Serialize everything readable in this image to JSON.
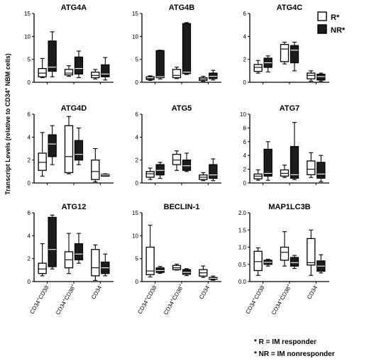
{
  "figure": {
    "ylabel_pre": "Transcript Levels (relative to CD34",
    "ylabel_sup": "+",
    "ylabel_post": " NBM cells)",
    "legend": [
      {
        "key": "R",
        "label": "R*",
        "color": "#ffffff"
      },
      {
        "key": "NR",
        "label": "NR*",
        "color": "#1c1c1c"
      }
    ],
    "footnotes": [
      "* R = IM responder",
      "* NR = IM nonresponder"
    ],
    "categories": [
      {
        "base": "CD34",
        "sups": [
          "+",
          "CD38",
          "-"
        ]
      },
      {
        "base": "CD34",
        "sups": [
          "+",
          "CD38",
          "+"
        ]
      },
      {
        "base": "CD34",
        "sups": [
          "-"
        ]
      }
    ]
  },
  "chart_data": [
    {
      "type": "box",
      "title": "ATG4A",
      "ylim": [
        0,
        15
      ],
      "yticks": [
        0,
        5,
        10,
        15
      ],
      "series": [
        {
          "name": "R*",
          "boxes": [
            [
              1.0,
              1.2,
              2.0,
              3.0,
              5.2
            ],
            [
              1.3,
              1.6,
              2.0,
              2.8,
              3.6
            ],
            [
              0.7,
              1.0,
              1.5,
              2.2,
              2.8
            ]
          ]
        },
        {
          "name": "NR*",
          "boxes": [
            [
              1.2,
              2.4,
              3.3,
              9.0,
              11.0
            ],
            [
              1.0,
              1.8,
              3.0,
              5.5,
              6.8
            ],
            [
              0.5,
              1.2,
              1.8,
              3.8,
              5.4
            ]
          ]
        }
      ]
    },
    {
      "type": "box",
      "title": "ATG4B",
      "ylim": [
        0,
        15
      ],
      "yticks": [
        0,
        5,
        10,
        15
      ],
      "series": [
        {
          "name": "R*",
          "boxes": [
            [
              0.4,
              0.6,
              0.8,
              1.2,
              1.4
            ],
            [
              0.8,
              1.0,
              1.5,
              2.8,
              3.3
            ],
            [
              0.2,
              0.4,
              0.7,
              1.0,
              1.3
            ]
          ]
        },
        {
          "name": "NR*",
          "boxes": [
            [
              0.7,
              1.0,
              1.2,
              6.9,
              7.0
            ],
            [
              1.7,
              1.9,
              2.2,
              12.8,
              13.0
            ],
            [
              0.5,
              0.8,
              1.3,
              2.0,
              2.6
            ]
          ]
        }
      ]
    },
    {
      "type": "box",
      "title": "ATG4C",
      "ylim": [
        0,
        6
      ],
      "yticks": [
        0,
        2,
        4,
        6
      ],
      "series": [
        {
          "name": "R*",
          "boxes": [
            [
              0.8,
              0.95,
              1.3,
              1.55,
              1.9
            ],
            [
              1.6,
              1.8,
              2.9,
              3.3,
              3.5
            ],
            [
              0.1,
              0.3,
              0.6,
              0.8,
              1.0
            ]
          ]
        },
        {
          "name": "NR*",
          "boxes": [
            [
              0.9,
              1.3,
              1.7,
              2.1,
              2.3
            ],
            [
              1.0,
              1.7,
              2.8,
              3.2,
              3.5
            ],
            [
              0.1,
              0.2,
              0.5,
              0.7,
              0.8
            ]
          ]
        }
      ]
    },
    {
      "type": "box",
      "title": "ATG4D",
      "ylim": [
        0,
        6
      ],
      "yticks": [
        0,
        2,
        4,
        6
      ],
      "series": [
        {
          "name": "R*",
          "boxes": [
            [
              0.6,
              1.1,
              1.8,
              2.6,
              4.4
            ],
            [
              0.8,
              0.9,
              2.3,
              5.0,
              5.8
            ],
            [
              0.1,
              0.3,
              1.0,
              2.0,
              3.0
            ]
          ]
        },
        {
          "name": "NR*",
          "boxes": [
            [
              1.6,
              2.3,
              3.4,
              4.2,
              5.0
            ],
            [
              1.6,
              2.0,
              2.5,
              3.7,
              4.8
            ],
            [
              0.6,
              0.6,
              0.7,
              0.75,
              0.8
            ]
          ]
        }
      ]
    },
    {
      "type": "box",
      "title": "ATG5",
      "ylim": [
        0,
        6
      ],
      "yticks": [
        0,
        2,
        4,
        6
      ],
      "series": [
        {
          "name": "R*",
          "boxes": [
            [
              0.3,
              0.5,
              0.8,
              1.0,
              1.3
            ],
            [
              1.1,
              1.6,
              2.0,
              2.5,
              2.8
            ],
            [
              0.2,
              0.3,
              0.5,
              0.7,
              0.9
            ]
          ]
        },
        {
          "name": "NR*",
          "boxes": [
            [
              0.4,
              0.7,
              1.1,
              1.6,
              1.8
            ],
            [
              1.0,
              1.1,
              1.5,
              2.0,
              2.6
            ],
            [
              0.2,
              0.4,
              0.7,
              1.6,
              2.1
            ]
          ]
        }
      ]
    },
    {
      "type": "box",
      "title": "ATG7",
      "ylim": [
        0,
        10
      ],
      "yticks": [
        0,
        2,
        4,
        6,
        8,
        10
      ],
      "series": [
        {
          "name": "R*",
          "boxes": [
            [
              0.4,
              0.6,
              1.0,
              1.3,
              1.9
            ],
            [
              0.8,
              1.0,
              1.4,
              1.9,
              2.6
            ],
            [
              0.8,
              1.2,
              2.0,
              3.2,
              4.4
            ]
          ]
        },
        {
          "name": "NR*",
          "boxes": [
            [
              0.4,
              1.0,
              1.4,
              4.9,
              6.0
            ],
            [
              0.5,
              0.7,
              1.2,
              5.3,
              8.8
            ],
            [
              0.2,
              0.7,
              1.3,
              3.0,
              4.0
            ]
          ]
        }
      ]
    },
    {
      "type": "box",
      "title": "ATG12",
      "ylim": [
        0,
        6
      ],
      "yticks": [
        0,
        2,
        4,
        6
      ],
      "series": [
        {
          "name": "R*",
          "boxes": [
            [
              0.5,
              0.7,
              1.1,
              1.6,
              3.3
            ],
            [
              0.7,
              1.2,
              1.9,
              2.6,
              4.2
            ],
            [
              0.1,
              0.5,
              1.2,
              2.8,
              3.2
            ]
          ]
        },
        {
          "name": "NR*",
          "boxes": [
            [
              1.1,
              1.3,
              2.8,
              5.6,
              5.8
            ],
            [
              1.6,
              1.9,
              2.4,
              3.3,
              4.2
            ],
            [
              0.5,
              0.7,
              1.2,
              1.7,
              2.4
            ]
          ]
        }
      ]
    },
    {
      "type": "box",
      "title": "BECLIN-1",
      "ylim": [
        0,
        15
      ],
      "yticks": [
        0,
        5,
        10,
        15
      ],
      "series": [
        {
          "name": "R*",
          "boxes": [
            [
              1.0,
              1.5,
              2.3,
              7.5,
              12.3
            ],
            [
              2.5,
              2.6,
              3.0,
              3.5,
              3.8
            ],
            [
              0.9,
              1.2,
              1.9,
              2.6,
              3.4
            ]
          ]
        },
        {
          "name": "NR*",
          "boxes": [
            [
              1.8,
              2.0,
              2.4,
              3.0,
              3.3
            ],
            [
              1.3,
              1.6,
              2.0,
              2.6,
              2.8
            ],
            [
              0.3,
              0.5,
              0.7,
              0.9,
              1.2
            ]
          ]
        }
      ]
    },
    {
      "type": "box",
      "title": "MAP1LC3B",
      "ylim": [
        0,
        2.0
      ],
      "yticks": [
        0.0,
        0.5,
        1.0,
        1.5,
        2.0
      ],
      "series": [
        {
          "name": "R*",
          "boxes": [
            [
              0.18,
              0.32,
              0.58,
              0.88,
              0.98
            ],
            [
              0.45,
              0.62,
              0.85,
              1.0,
              1.45
            ],
            [
              0.18,
              0.48,
              0.55,
              1.25,
              1.5
            ]
          ]
        },
        {
          "name": "NR*",
          "boxes": [
            [
              0.45,
              0.5,
              0.56,
              0.62,
              0.65
            ],
            [
              0.38,
              0.45,
              0.55,
              0.7,
              0.76
            ],
            [
              0.25,
              0.3,
              0.45,
              0.6,
              0.78
            ]
          ]
        }
      ]
    }
  ]
}
